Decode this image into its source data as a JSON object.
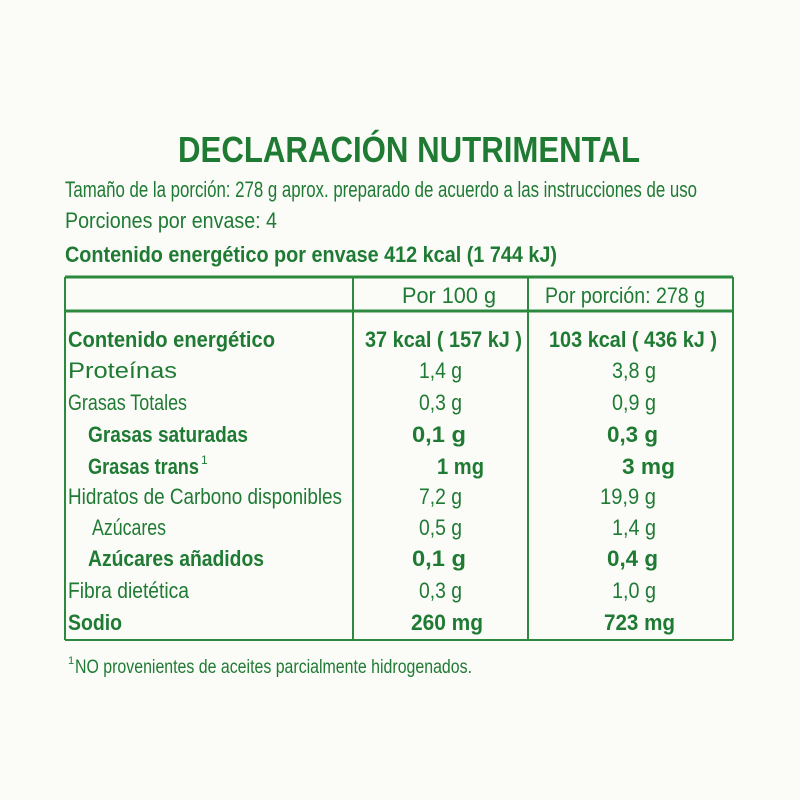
{
  "title": "DECLARACIÓN NUTRIMENTAL",
  "serving_size": "Tamaño de la porción: 278 g aprox. preparado de acuerdo a las instrucciones de uso",
  "servings": "Porciones por envase: 4",
  "energy_per_package": "Contenido energético por envase 412 kcal (1 744 kJ)",
  "table": {
    "header": [
      "Por 100 g",
      "Por porción: 278 g"
    ],
    "rows": [
      [
        "Contenido energético",
        "37 kcal ( 157 kJ )",
        "103 kcal ( 436 kJ )"
      ],
      [
        "Proteínas",
        "1,4 g",
        "3,8 g"
      ],
      [
        "Grasas Totales",
        "0,3 g",
        "0,9 g"
      ],
      [
        "Grasas saturadas",
        "0,1 g",
        "0,3 g"
      ],
      [
        "Grasas trans",
        "1 mg",
        "3 mg"
      ],
      [
        "Hidratos de Carbono disponibles",
        "7,2 g",
        "19,9 g"
      ],
      [
        "Azúcares",
        "0,5 g",
        "1,4 g"
      ],
      [
        "Azúcares añadidos",
        "0,1 g",
        "0,4 g"
      ],
      [
        "Fibra dietética",
        "0,3 g",
        "1,0 g"
      ],
      [
        "Sodio",
        "260 mg",
        "723 mg"
      ]
    ]
  },
  "footnote": {
    "marker": "1",
    "text": "NO provenientes de aceites parcialmente hidrogenados."
  }
}
